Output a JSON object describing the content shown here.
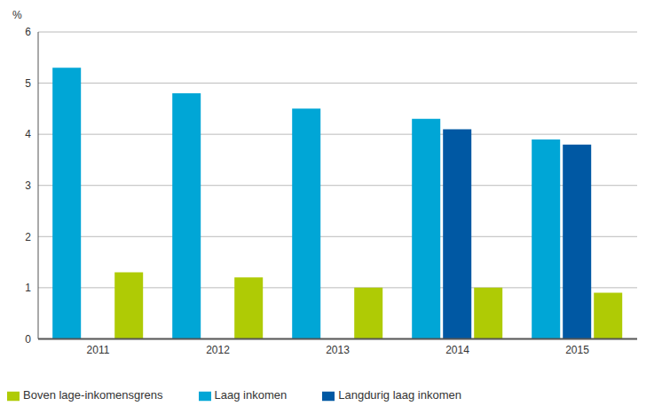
{
  "chart_data": {
    "type": "bar",
    "y_label": "%",
    "categories": [
      "2011",
      "2012",
      "2013",
      "2014",
      "2015"
    ],
    "series": [
      {
        "name": "Laag inkomen",
        "color": "#00a6d6",
        "values": [
          5.3,
          4.8,
          4.5,
          4.3,
          3.9
        ]
      },
      {
        "name": "Langdurig laag inkomen",
        "color": "#0058a3",
        "values": [
          null,
          null,
          null,
          4.1,
          3.8
        ]
      },
      {
        "name": "Boven lage-inkomensgrens",
        "color": "#afcb05",
        "values": [
          1.3,
          1.2,
          1.0,
          1.0,
          0.9
        ]
      }
    ],
    "ylim": [
      0,
      6
    ],
    "yticks": [
      0,
      1,
      2,
      3,
      4,
      5,
      6
    ],
    "grid": true,
    "legend": "bottom-left"
  }
}
